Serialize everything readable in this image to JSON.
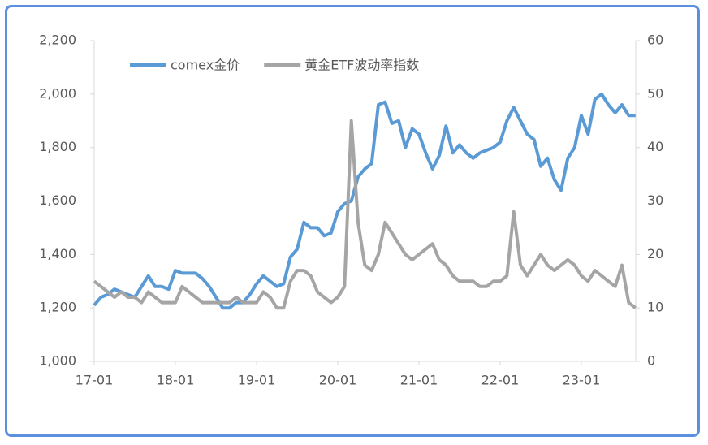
{
  "chart_data": {
    "type": "line",
    "x": [
      "17-01",
      "17-02",
      "17-03",
      "17-04",
      "17-05",
      "17-06",
      "17-07",
      "17-08",
      "17-09",
      "17-10",
      "17-11",
      "17-12",
      "18-01",
      "18-02",
      "18-03",
      "18-04",
      "18-05",
      "18-06",
      "18-07",
      "18-08",
      "18-09",
      "18-10",
      "18-11",
      "18-12",
      "19-01",
      "19-02",
      "19-03",
      "19-04",
      "19-05",
      "19-06",
      "19-07",
      "19-08",
      "19-09",
      "19-10",
      "19-11",
      "19-12",
      "20-01",
      "20-02",
      "20-03",
      "20-04",
      "20-05",
      "20-06",
      "20-07",
      "20-08",
      "20-09",
      "20-10",
      "20-11",
      "20-12",
      "21-01",
      "21-02",
      "21-03",
      "21-04",
      "21-05",
      "21-06",
      "21-07",
      "21-08",
      "21-09",
      "21-10",
      "21-11",
      "21-12",
      "22-01",
      "22-02",
      "22-03",
      "22-04",
      "22-05",
      "22-06",
      "22-07",
      "22-08",
      "22-09",
      "22-10",
      "22-11",
      "22-12",
      "23-01",
      "23-02",
      "23-03",
      "23-04",
      "23-05",
      "23-06",
      "23-07",
      "23-08",
      "23-09"
    ],
    "xticks": [
      "17-01",
      "18-01",
      "19-01",
      "20-01",
      "21-01",
      "22-01",
      "23-01"
    ],
    "series": [
      {
        "name": "comex金价",
        "color": "#5b9bd5",
        "axis": "y",
        "values": [
          1210,
          1240,
          1250,
          1270,
          1260,
          1250,
          1240,
          1280,
          1320,
          1280,
          1280,
          1270,
          1340,
          1330,
          1330,
          1330,
          1310,
          1280,
          1240,
          1200,
          1200,
          1220,
          1220,
          1250,
          1290,
          1320,
          1300,
          1280,
          1290,
          1390,
          1420,
          1520,
          1500,
          1500,
          1470,
          1480,
          1560,
          1590,
          1600,
          1690,
          1720,
          1740,
          1960,
          1970,
          1890,
          1900,
          1800,
          1870,
          1850,
          1780,
          1720,
          1770,
          1880,
          1780,
          1810,
          1780,
          1760,
          1780,
          1790,
          1800,
          1820,
          1900,
          1950,
          1900,
          1850,
          1830,
          1730,
          1760,
          1680,
          1640,
          1760,
          1800,
          1920,
          1850,
          1980,
          2000,
          1960,
          1930,
          1960,
          1920,
          1920
        ]
      },
      {
        "name": "黄金ETF波动率指数",
        "color": "#a5a5a5",
        "axis": "y2",
        "values": [
          15,
          14,
          13,
          12,
          13,
          12,
          12,
          11,
          13,
          12,
          11,
          11,
          11,
          14,
          13,
          12,
          11,
          11,
          11,
          11,
          11,
          12,
          11,
          11,
          11,
          13,
          12,
          10,
          10,
          15,
          17,
          17,
          16,
          13,
          12,
          11,
          12,
          14,
          45,
          26,
          18,
          17,
          20,
          26,
          24,
          22,
          20,
          19,
          20,
          21,
          22,
          19,
          18,
          16,
          15,
          15,
          15,
          14,
          14,
          15,
          15,
          16,
          28,
          18,
          16,
          18,
          20,
          18,
          17,
          18,
          19,
          18,
          16,
          15,
          17,
          16,
          15,
          14,
          18,
          11,
          10
        ]
      }
    ],
    "ylim": [
      1000,
      2200
    ],
    "yticks": [
      {
        "value": 1000,
        "label": "1,000"
      },
      {
        "value": 1200,
        "label": "1,200"
      },
      {
        "value": 1400,
        "label": "1,400"
      },
      {
        "value": 1600,
        "label": "1,600"
      },
      {
        "value": 1800,
        "label": "1,800"
      },
      {
        "value": 2000,
        "label": "2,000"
      },
      {
        "value": 2200,
        "label": "2,200"
      }
    ],
    "y2lim": [
      0,
      60
    ],
    "y2ticks": [
      0,
      10,
      20,
      30,
      40,
      50,
      60
    ],
    "legend": "top"
  }
}
